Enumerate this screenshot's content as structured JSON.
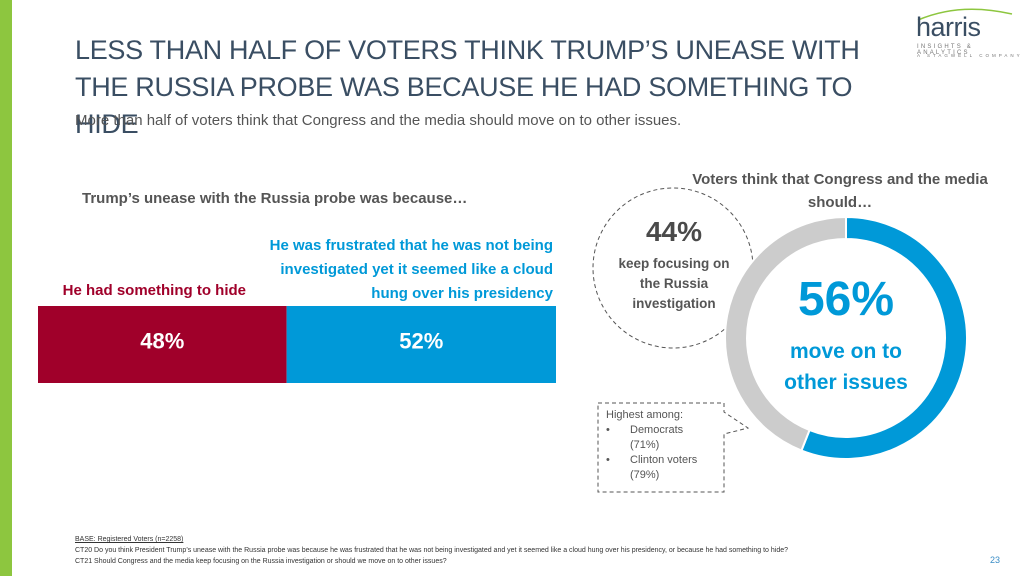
{
  "header": {
    "title": "LESS THAN HALF OF VOTERS THINK TRUMP’S UNEASE WITH THE RUSSIA PROBE WAS BECAUSE HE HAD SOMETHING TO HIDE",
    "subtitle": "More than half of voters think that Congress and the media should move on to other issues."
  },
  "logo": {
    "name": "harris",
    "tagline": "INSIGHTS & ANALYTICS",
    "company": "A STAGWELL COMPANY"
  },
  "chart_data": [
    {
      "type": "stacked-bar",
      "title": "Trump’s unease with the Russia probe was because…",
      "categories": [
        null
      ],
      "xlim": [
        0,
        100
      ],
      "series": [
        {
          "name": "He had something to hide",
          "color": "#a0002a",
          "values": [
            48
          ],
          "value_labels": [
            "48%"
          ]
        },
        {
          "name": "He was frustrated that he was not being investigated yet it seemed like a cloud hung over his presidency",
          "color": "#0099d8",
          "values": [
            52
          ],
          "value_labels": [
            "52%"
          ]
        }
      ]
    },
    {
      "type": "donut",
      "title": "Voters think that Congress and the media should…",
      "categories": [
        "move on to other issues",
        "keep focusing on the Russia investigation"
      ],
      "values": [
        56,
        44
      ],
      "value_labels": [
        "56%",
        "44%"
      ],
      "colors": [
        "#0099d8",
        "#cccccc"
      ]
    }
  ],
  "callout": {
    "heading": "Highest among:",
    "items": [
      {
        "label": "Democrats",
        "share": "(71%)"
      },
      {
        "label": "Clinton voters",
        "share": "(79%)"
      }
    ]
  },
  "footnotes": {
    "base": "BASE: Registered Voters (n=2258)",
    "notes": [
      "CT20 Do you think President Trump’s unease with the Russia probe was because he was frustrated that he was not being investigated and yet it seemed like a cloud hung over his presidency, or because he had something to hide?",
      "CT21 Should Congress and the media keep focusing on the Russia investigation or should we move on to other issues?"
    ]
  },
  "page_number": 23
}
